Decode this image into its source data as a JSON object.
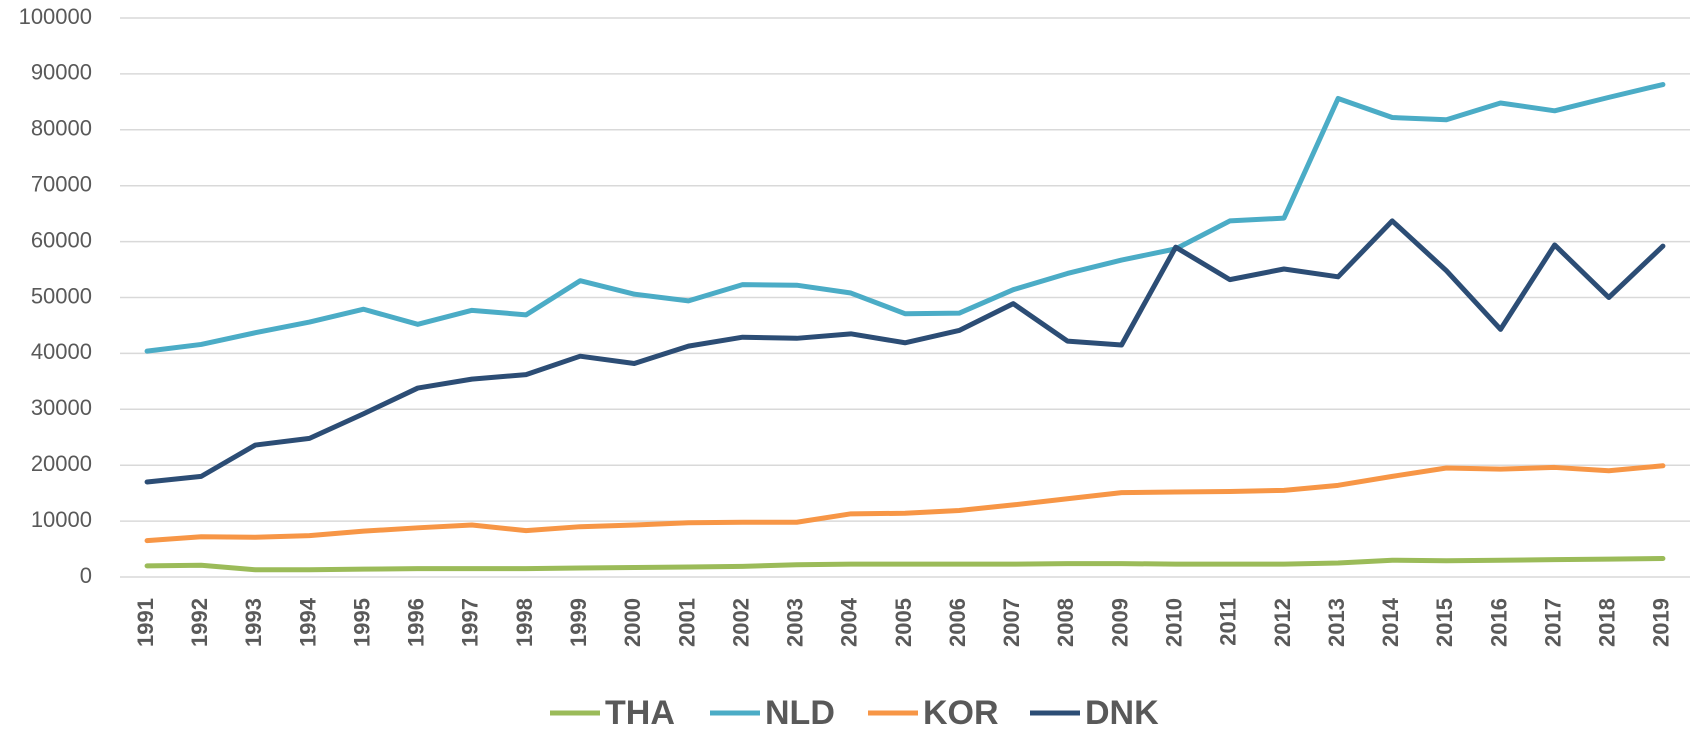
{
  "chart_data": {
    "type": "line",
    "categories": [
      "1991",
      "1992",
      "1993",
      "1994",
      "1995",
      "1996",
      "1997",
      "1998",
      "1999",
      "2000",
      "2001",
      "2002",
      "2003",
      "2004",
      "2005",
      "2006",
      "2007",
      "2008",
      "2009",
      "2010",
      "2011",
      "2012",
      "2013",
      "2014",
      "2015",
      "2016",
      "2017",
      "2018",
      "2019"
    ],
    "series": [
      {
        "name": "THA",
        "color": "#9bbb59",
        "values": [
          2000,
          2100,
          1300,
          1300,
          1400,
          1500,
          1500,
          1500,
          1600,
          1700,
          1800,
          1900,
          2200,
          2300,
          2300,
          2300,
          2300,
          2400,
          2400,
          2300,
          2300,
          2300,
          2500,
          3000,
          2900,
          3000,
          3100,
          3200,
          3300
        ]
      },
      {
        "name": "NLD",
        "color": "#4bacc6",
        "values": [
          40400,
          41600,
          43700,
          45600,
          47900,
          45200,
          47700,
          46900,
          53000,
          50600,
          49400,
          52300,
          52200,
          50800,
          47100,
          47200,
          51400,
          54300,
          56700,
          58700,
          63700,
          64200,
          85600,
          82200,
          81800,
          84800,
          83400,
          85800,
          88100
        ]
      },
      {
        "name": "KOR",
        "color": "#f79646",
        "values": [
          6500,
          7200,
          7100,
          7400,
          8200,
          8800,
          9300,
          8300,
          9000,
          9300,
          9700,
          9800,
          9800,
          11300,
          11400,
          11900,
          12900,
          14000,
          15100,
          15200,
          15300,
          15500,
          16400,
          18000,
          19500,
          19300,
          19600,
          19000,
          19900
        ]
      },
      {
        "name": "DNK",
        "color": "#2c4d75",
        "values": [
          17000,
          18000,
          23600,
          24800,
          29200,
          33800,
          35400,
          36200,
          39500,
          38200,
          41300,
          42900,
          42700,
          43500,
          41900,
          44100,
          48900,
          42200,
          41500,
          59000,
          53200,
          55100,
          53700,
          63700,
          54800,
          44300,
          59400,
          50000,
          59200
        ]
      }
    ],
    "ylim": [
      0,
      100000
    ],
    "yticks": [
      0,
      10000,
      20000,
      30000,
      40000,
      50000,
      60000,
      70000,
      80000,
      90000,
      100000
    ],
    "grid": true,
    "legend": "bottom"
  }
}
